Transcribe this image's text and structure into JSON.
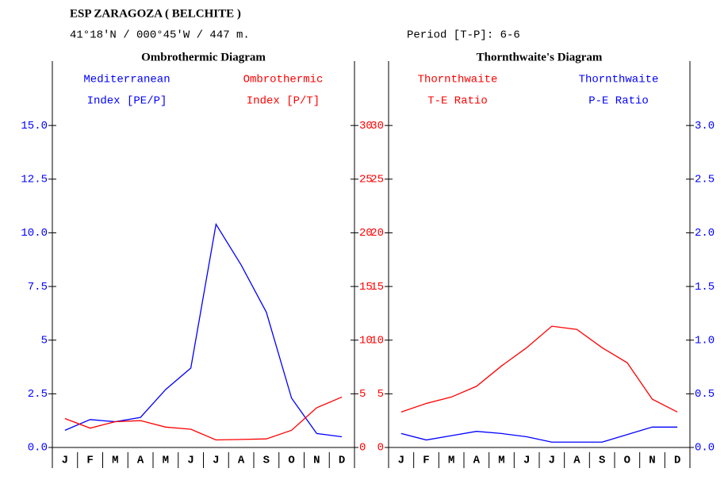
{
  "header": {
    "title": "ESP ZARAGOZA ( BELCHITE )",
    "location": "41°18'N / 000°45'W / 447 m.",
    "period": "Period [T-P]: 6-6"
  },
  "chart_data": [
    {
      "type": "line",
      "title": "Ombrothermic Diagram",
      "categories": [
        "J",
        "F",
        "M",
        "A",
        "M",
        "J",
        "J",
        "A",
        "S",
        "O",
        "N",
        "D"
      ],
      "ylim": [
        0,
        18
      ],
      "yticks": [
        {
          "value": 0,
          "label": "0.0"
        },
        2.5,
        5.0,
        7.5,
        {
          "value": 10,
          "label": "10.0"
        },
        12.5,
        {
          "value": 15,
          "label": "15.0"
        }
      ],
      "yaxis_color": "#0000ff",
      "y2lim": [
        0,
        36
      ],
      "y2ticks": [
        0,
        5,
        10,
        15,
        20,
        25,
        30
      ],
      "y2axis_color": "#ff0000",
      "series": [
        {
          "name": [
            "Mediterranean",
            "Index [PE/P]"
          ],
          "color": "#0000ff",
          "values": [
            0.8,
            1.3,
            1.2,
            1.4,
            2.7,
            3.7,
            10.4,
            8.5,
            6.3,
            2.3,
            0.65,
            0.5
          ]
        },
        {
          "name": [
            "Ombrothermic",
            "Index [P/T]"
          ],
          "color": "#ff0000",
          "axis": "y2",
          "values": [
            2.7,
            1.8,
            2.4,
            2.5,
            1.9,
            1.7,
            0.7,
            0.75,
            0.8,
            1.6,
            3.7,
            4.7
          ]
        }
      ]
    },
    {
      "type": "line",
      "title": "Thornthwaite's Diagram",
      "categories": [
        "J",
        "F",
        "M",
        "A",
        "M",
        "J",
        "J",
        "A",
        "S",
        "O",
        "N",
        "D"
      ],
      "ylim": [
        0,
        36
      ],
      "yticks": [
        0,
        5,
        10,
        15,
        20,
        25,
        30
      ],
      "yaxis_color": "#ff0000",
      "y2lim": [
        0,
        3.6
      ],
      "y2ticks": [
        {
          "value": 0,
          "label": "0.0"
        },
        0.5,
        {
          "value": 1,
          "label": "1.0"
        },
        1.5,
        {
          "value": 2,
          "label": "2.0"
        },
        2.5,
        {
          "value": 3,
          "label": "3.0"
        }
      ],
      "y2axis_color": "#0000ff",
      "series": [
        {
          "name": [
            "Thornthwaite",
            "T-E Ratio"
          ],
          "color": "#ff0000",
          "values": [
            3.3,
            4.1,
            4.7,
            5.7,
            7.6,
            9.3,
            11.3,
            11.0,
            9.3,
            7.9,
            4.5,
            3.3
          ]
        },
        {
          "name": [
            "Thornthwaite",
            "P-E Ratio"
          ],
          "color": "#0000ff",
          "axis": "y2",
          "values": [
            0.13,
            0.07,
            0.11,
            0.15,
            0.13,
            0.1,
            0.05,
            0.05,
            0.05,
            0.12,
            0.19,
            0.19
          ]
        }
      ]
    }
  ]
}
